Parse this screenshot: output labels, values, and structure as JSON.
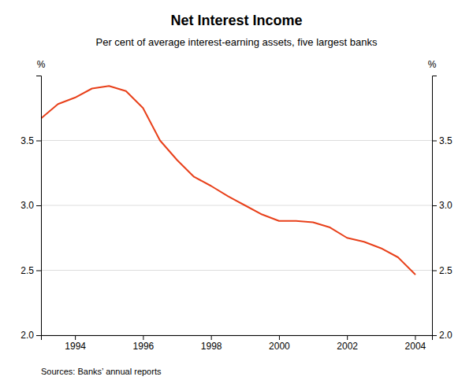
{
  "chart_data": {
    "type": "line",
    "title": "Net Interest Income",
    "subtitle": "Per cent of average interest-earning assets, five largest banks",
    "source": "Sources: Banks’ annual reports",
    "ylabel": "%",
    "y2label": "%",
    "x": [
      1993.0,
      1993.5,
      1994.0,
      1994.5,
      1995.0,
      1995.5,
      1996.0,
      1996.5,
      1997.0,
      1997.5,
      1998.0,
      1998.5,
      1999.0,
      1999.5,
      2000.0,
      2000.5,
      2001.0,
      2001.5,
      2002.0,
      2002.5,
      2003.0,
      2003.5,
      2004.0
    ],
    "values": [
      3.67,
      3.78,
      3.83,
      3.9,
      3.92,
      3.88,
      3.75,
      3.5,
      3.35,
      3.22,
      3.15,
      3.07,
      3.0,
      2.93,
      2.88,
      2.88,
      2.87,
      2.83,
      2.75,
      2.72,
      2.67,
      2.6,
      2.47
    ],
    "color": "#e8401a",
    "xlim": [
      1993.0,
      2004.5
    ],
    "xticks": [
      1994,
      1996,
      1998,
      2000,
      2002,
      2004
    ],
    "ylim": [
      2.0,
      4.0
    ],
    "yticks": [
      {
        "value": 2.0,
        "label": "2.0"
      },
      2.5,
      {
        "value": 3.0,
        "label": "3.0"
      },
      3.5
    ],
    "y2lim": [
      2.0,
      4.0
    ],
    "y2ticks": [
      {
        "value": 2.0,
        "label": "2.0"
      },
      2.5,
      {
        "value": 3.0,
        "label": "3.0"
      },
      3.5
    ],
    "grid": true
  }
}
